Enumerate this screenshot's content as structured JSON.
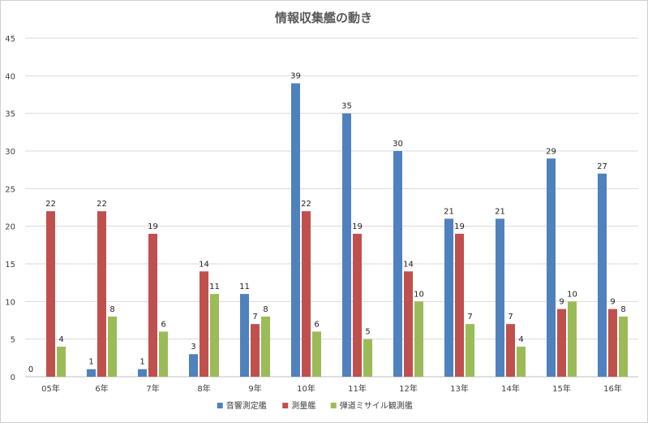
{
  "chart_data": {
    "type": "bar",
    "title": "情報収集艦の動き",
    "categories": [
      "05年",
      "6年",
      "7年",
      "8年",
      "9年",
      "10年",
      "11年",
      "12年",
      "13年",
      "14年",
      "15年",
      "16年"
    ],
    "series": [
      {
        "name": "音響測定艦",
        "color": "#4f81bd",
        "values": [
          0,
          1,
          1,
          3,
          11,
          39,
          35,
          30,
          21,
          21,
          29,
          27
        ]
      },
      {
        "name": "測量艦",
        "color": "#c0504d",
        "values": [
          22,
          22,
          19,
          14,
          7,
          22,
          19,
          14,
          19,
          7,
          9,
          9
        ]
      },
      {
        "name": "弾道ミサイル観測艦",
        "color": "#9bbb59",
        "values": [
          4,
          8,
          6,
          11,
          8,
          6,
          5,
          10,
          7,
          4,
          10,
          8
        ]
      }
    ],
    "ylim": [
      0,
      45
    ],
    "yticks": [
      0,
      5,
      10,
      15,
      20,
      25,
      30,
      35,
      40,
      45
    ],
    "grid": true,
    "legend_position": "bottom"
  }
}
